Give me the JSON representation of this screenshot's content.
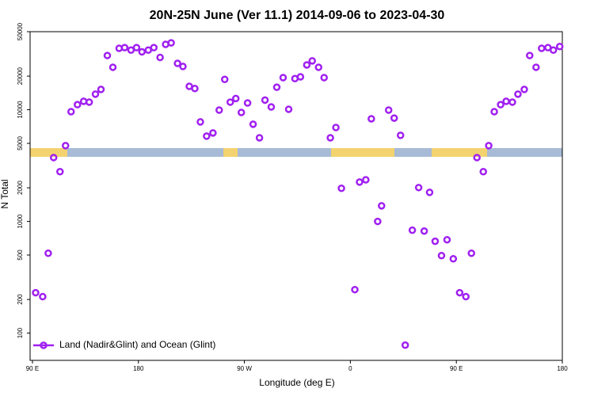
{
  "chart_data": {
    "type": "scatter",
    "title": "20N-25N June (Ver 11.1)   2014-09-06 to 2023-04-30",
    "x_label": "Longitude (deg E)",
    "y_label": "N Total",
    "log_y": true,
    "xlim": [
      88,
      540
    ],
    "ylim": [
      57,
      50000
    ],
    "xticks": [
      {
        "value": 90,
        "label": "90 E"
      },
      {
        "value": 180,
        "label": "180"
      },
      {
        "value": 270,
        "label": "90 W"
      },
      {
        "value": 360,
        "label": "0"
      },
      {
        "value": 450,
        "label": "90 E"
      },
      {
        "value": 540,
        "label": "180"
      }
    ],
    "yticks": [
      100,
      200,
      500,
      1000,
      2000,
      5000,
      10000,
      20000,
      50000
    ],
    "legend": "lower left",
    "series": [
      {
        "name": "Land (Nadir&Glint) and Ocean (Glint)",
        "color": "#a020f0",
        "x": [
          92.7,
          98.7,
          103.4,
          108,
          113.4,
          118.1,
          122.8,
          128.2,
          133.5,
          138.2,
          143.5,
          148.2,
          153.6,
          158.3,
          163.6,
          168.3,
          173.7,
          178.4,
          183,
          188.4,
          193.1,
          198.4,
          203.1,
          207.8,
          213.2,
          217.8,
          223.2,
          227.9,
          232.6,
          237.9,
          243.3,
          248.6,
          253.3,
          258,
          262.7,
          267.4,
          272.7,
          277.4,
          282.8,
          287.5,
          292.8,
          297.5,
          302.9,
          307.6,
          312.9,
          317.6,
          323,
          327.6,
          333,
          337.7,
          343,
          347.7,
          352.4,
          363.8,
          367.8,
          373.1,
          377.8,
          383.2,
          386.5,
          392.5,
          397.2,
          402.6,
          406.6,
          412.6,
          418,
          422.7,
          427.3,
          432,
          437.4,
          442.1,
          447.4,
          452.8,
          458.1,
          462.8,
          467.5,
          472.9,
          477.5,
          482.2,
          487.6,
          492.3,
          497.6,
          502.3,
          507.7,
          512.3,
          517.7,
          522.4,
          527.8,
          532.4,
          537.8
        ],
        "values": [
          230,
          212,
          519,
          3730,
          2790,
          4770,
          9610,
          11100,
          11900,
          11700,
          13800,
          15200,
          30600,
          24000,
          35500,
          36000,
          34200,
          36000,
          33000,
          34200,
          36000,
          29400,
          38500,
          39700,
          26000,
          24400,
          16200,
          15500,
          7780,
          5800,
          6200,
          9930,
          18700,
          11700,
          12600,
          9460,
          11500,
          7420,
          5610,
          12200,
          10600,
          15900,
          19400,
          10100,
          19000,
          19700,
          25200,
          27400,
          24000,
          19400,
          5610,
          6930,
          1980,
          245,
          2250,
          2360,
          8300,
          1000,
          1380,
          9930,
          8420,
          5900,
          78,
          834,
          2010,
          820,
          1820,
          664,
          494,
          685,
          463,
          230,
          212,
          519,
          3730,
          2790,
          4770,
          9610,
          11100,
          11900,
          11700,
          13800,
          15200,
          30600,
          24000,
          35500,
          36000,
          34200,
          36800
        ]
      }
    ]
  }
}
